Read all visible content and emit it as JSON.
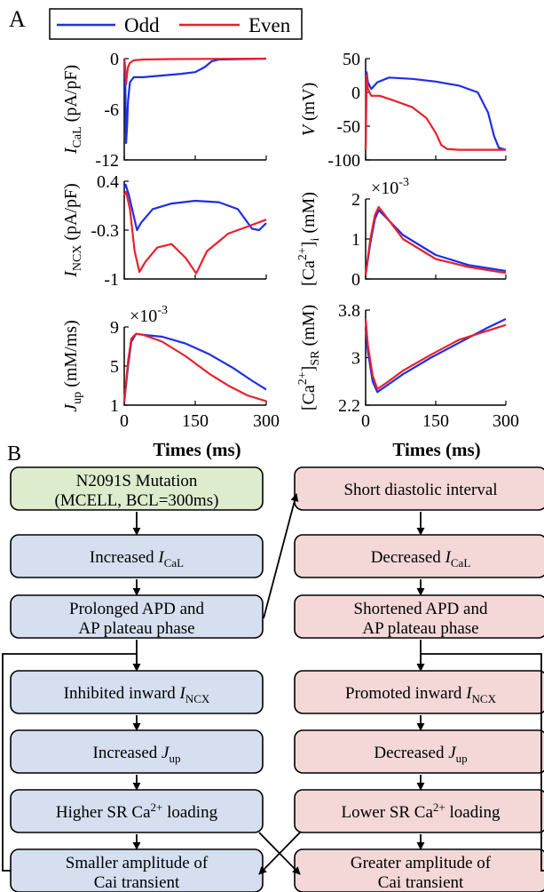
{
  "panel_a_label": "A",
  "panel_b_label": "B",
  "legend": {
    "odd": "Odd",
    "even": "Even",
    "odd_color": "#1f2ee6",
    "even_color": "#e8212b"
  },
  "axes": {
    "x_ticks": [
      "0",
      "150",
      "300"
    ],
    "x_label": "Times (ms)"
  },
  "chart_data": [
    {
      "type": "line",
      "id": "ical",
      "ylabel": "I_CaL (pA/pF)",
      "ylabel_main": "I",
      "ylabel_sub": "CaL",
      "ylabel_unit": "(pA/pF)",
      "xlim": [
        0,
        300
      ],
      "ylim": [
        -12,
        0
      ],
      "yticks": [
        -12,
        -6,
        0
      ],
      "yticklabels": [
        "-12",
        "-6",
        "0"
      ],
      "series": [
        {
          "name": "Odd",
          "color": "#1f2ee6",
          "points": [
            [
              0,
              0
            ],
            [
              2,
              -2
            ],
            [
              4,
              -10
            ],
            [
              6,
              -8
            ],
            [
              8,
              -5
            ],
            [
              12,
              -2.8
            ],
            [
              20,
              -2.2
            ],
            [
              40,
              -2.2
            ],
            [
              80,
              -2
            ],
            [
              120,
              -1.8
            ],
            [
              150,
              -1.6
            ],
            [
              170,
              -1
            ],
            [
              185,
              -0.3
            ],
            [
              200,
              -0.1
            ],
            [
              300,
              0
            ]
          ]
        },
        {
          "name": "Even",
          "color": "#e8212b",
          "points": [
            [
              0,
              0
            ],
            [
              2,
              -1
            ],
            [
              4,
              -3
            ],
            [
              6,
              -1.8
            ],
            [
              8,
              -1
            ],
            [
              12,
              -0.5
            ],
            [
              20,
              -0.2
            ],
            [
              40,
              -0.1
            ],
            [
              100,
              -0.05
            ],
            [
              300,
              0
            ]
          ]
        }
      ]
    },
    {
      "type": "line",
      "id": "v",
      "ylabel": "V (mV)",
      "ylabel_main": "V",
      "ylabel_unit": "(mV)",
      "xlim": [
        0,
        300
      ],
      "ylim": [
        -100,
        50
      ],
      "yticks": [
        -100,
        -50,
        0,
        50
      ],
      "yticklabels": [
        "-100",
        "-50",
        "0",
        "50"
      ],
      "series": [
        {
          "name": "Odd",
          "color": "#1f2ee6",
          "points": [
            [
              0,
              -85
            ],
            [
              2,
              30
            ],
            [
              5,
              15
            ],
            [
              12,
              5
            ],
            [
              25,
              15
            ],
            [
              50,
              22
            ],
            [
              100,
              20
            ],
            [
              150,
              16
            ],
            [
              200,
              10
            ],
            [
              240,
              0
            ],
            [
              262,
              -30
            ],
            [
              275,
              -65
            ],
            [
              285,
              -82
            ],
            [
              300,
              -85
            ]
          ]
        },
        {
          "name": "Even",
          "color": "#e8212b",
          "points": [
            [
              0,
              -85
            ],
            [
              2,
              25
            ],
            [
              5,
              5
            ],
            [
              12,
              -5
            ],
            [
              30,
              -5
            ],
            [
              60,
              -12
            ],
            [
              100,
              -22
            ],
            [
              130,
              -38
            ],
            [
              150,
              -60
            ],
            [
              162,
              -78
            ],
            [
              175,
              -84
            ],
            [
              200,
              -85
            ],
            [
              300,
              -85
            ]
          ]
        }
      ]
    },
    {
      "type": "line",
      "id": "incx",
      "ylabel": "I_NCX (pA/pF)",
      "ylabel_main": "I",
      "ylabel_sub": "NCX",
      "ylabel_unit": "(pA/pF)",
      "xlim": [
        0,
        300
      ],
      "ylim": [
        -1,
        0.4
      ],
      "yticks": [
        -1,
        -0.3,
        0.4
      ],
      "yticklabels": [
        "-1",
        "-0.3",
        "0.4"
      ],
      "series": [
        {
          "name": "Odd",
          "color": "#1f2ee6",
          "points": [
            [
              0,
              0.3
            ],
            [
              3,
              0.35
            ],
            [
              10,
              0.2
            ],
            [
              20,
              -0.1
            ],
            [
              27,
              -0.3
            ],
            [
              35,
              -0.2
            ],
            [
              60,
              0
            ],
            [
              100,
              0.08
            ],
            [
              150,
              0.12
            ],
            [
              200,
              0.1
            ],
            [
              240,
              0
            ],
            [
              270,
              -0.28
            ],
            [
              285,
              -0.3
            ],
            [
              300,
              -0.2
            ]
          ]
        },
        {
          "name": "Even",
          "color": "#e8212b",
          "points": [
            [
              0,
              0.2
            ],
            [
              4,
              0.25
            ],
            [
              12,
              0
            ],
            [
              22,
              -0.6
            ],
            [
              32,
              -0.9
            ],
            [
              45,
              -0.75
            ],
            [
              70,
              -0.55
            ],
            [
              100,
              -0.5
            ],
            [
              130,
              -0.7
            ],
            [
              152,
              -0.92
            ],
            [
              175,
              -0.6
            ],
            [
              220,
              -0.35
            ],
            [
              260,
              -0.25
            ],
            [
              300,
              -0.15
            ]
          ]
        }
      ]
    },
    {
      "type": "line",
      "id": "cai",
      "ylabel": "[Ca2+]i (mM)",
      "ylabel_main": "[Ca",
      "ylabel_sup": "2+",
      "ylabel_sub": "i",
      "ylabel_unit": "(mM)",
      "multiplier": "×10",
      "multiplier_exp": "-3",
      "xlim": [
        0,
        300
      ],
      "ylim": [
        0,
        2
      ],
      "yticks": [
        0,
        1,
        2
      ],
      "yticklabels": [
        "0",
        "1",
        "2"
      ],
      "series": [
        {
          "name": "Odd",
          "color": "#1f2ee6",
          "points": [
            [
              0,
              0.1
            ],
            [
              10,
              0.9
            ],
            [
              20,
              1.5
            ],
            [
              28,
              1.72
            ],
            [
              40,
              1.58
            ],
            [
              80,
              1.1
            ],
            [
              150,
              0.6
            ],
            [
              220,
              0.35
            ],
            [
              300,
              0.2
            ]
          ]
        },
        {
          "name": "Even",
          "color": "#e8212b",
          "points": [
            [
              0,
              0.1
            ],
            [
              10,
              1.0
            ],
            [
              20,
              1.6
            ],
            [
              28,
              1.8
            ],
            [
              40,
              1.62
            ],
            [
              80,
              1.0
            ],
            [
              150,
              0.5
            ],
            [
              220,
              0.3
            ],
            [
              300,
              0.15
            ]
          ]
        }
      ]
    },
    {
      "type": "line",
      "id": "jup",
      "ylabel": "J_up (mM/ms)",
      "ylabel_main": "J",
      "ylabel_sub": "up",
      "ylabel_unit": "(mM/ms)",
      "multiplier": "×10",
      "multiplier_exp": "-3",
      "xlim": [
        0,
        300
      ],
      "ylim": [
        1,
        9
      ],
      "yticks": [
        1,
        5,
        9
      ],
      "yticklabels": [
        "1",
        "5",
        "9"
      ],
      "series": [
        {
          "name": "Odd",
          "color": "#1f2ee6",
          "points": [
            [
              0,
              1.3
            ],
            [
              8,
              5
            ],
            [
              15,
              7.5
            ],
            [
              25,
              8.3
            ],
            [
              40,
              8.2
            ],
            [
              80,
              8
            ],
            [
              130,
              7.3
            ],
            [
              180,
              6.2
            ],
            [
              230,
              4.8
            ],
            [
              270,
              3.5
            ],
            [
              300,
              2.6
            ]
          ]
        },
        {
          "name": "Even",
          "color": "#e8212b",
          "points": [
            [
              0,
              1.3
            ],
            [
              8,
              5.5
            ],
            [
              15,
              7.8
            ],
            [
              25,
              8.3
            ],
            [
              40,
              8.2
            ],
            [
              80,
              7.5
            ],
            [
              130,
              6
            ],
            [
              180,
              4.2
            ],
            [
              220,
              3
            ],
            [
              260,
              2
            ],
            [
              300,
              1.4
            ]
          ]
        }
      ]
    },
    {
      "type": "line",
      "id": "casr",
      "ylabel": "[Ca2+]SR (mM)",
      "ylabel_main": "[Ca",
      "ylabel_sup": "2+",
      "ylabel_sub": "SR",
      "ylabel_unit": "(mM)",
      "xlim": [
        0,
        300
      ],
      "ylim": [
        2.2,
        3.8
      ],
      "yticks": [
        2.2,
        3,
        3.8
      ],
      "yticklabels": [
        "2.2",
        "3",
        "3.8"
      ],
      "series": [
        {
          "name": "Odd",
          "color": "#1f2ee6",
          "points": [
            [
              0,
              3.5
            ],
            [
              5,
              3.1
            ],
            [
              15,
              2.6
            ],
            [
              25,
              2.42
            ],
            [
              40,
              2.5
            ],
            [
              80,
              2.72
            ],
            [
              140,
              3.0
            ],
            [
              200,
              3.25
            ],
            [
              260,
              3.5
            ],
            [
              300,
              3.65
            ]
          ]
        },
        {
          "name": "Even",
          "color": "#e8212b",
          "points": [
            [
              0,
              3.65
            ],
            [
              5,
              3.2
            ],
            [
              15,
              2.7
            ],
            [
              25,
              2.47
            ],
            [
              40,
              2.55
            ],
            [
              80,
              2.78
            ],
            [
              140,
              3.05
            ],
            [
              200,
              3.3
            ],
            [
              260,
              3.45
            ],
            [
              300,
              3.55
            ]
          ]
        }
      ]
    }
  ],
  "flow": {
    "left": [
      {
        "kind": "plain",
        "text": "N2091S Mutation",
        "text2": "(MCELL, BCL=300ms)"
      },
      {
        "kind": "sub",
        "pre": "Increased ",
        "main": "I",
        "sub": "CaL"
      },
      {
        "kind": "plain",
        "text": "Prolonged APD and",
        "text2": "AP plateau phase"
      },
      {
        "kind": "sub",
        "pre": "Inhibited inward ",
        "main": "I",
        "sub": "NCX"
      },
      {
        "kind": "sub",
        "pre": "Increased ",
        "main": "J",
        "sub": "up"
      },
      {
        "kind": "sup",
        "pre": "Higher SR Ca",
        "sup": "2+",
        "post": " loading"
      },
      {
        "kind": "plain",
        "text": "Smaller amplitude of",
        "text2": "Cai transient"
      }
    ],
    "right": [
      {
        "kind": "plain",
        "text": "Short diastolic interval"
      },
      {
        "kind": "sub",
        "pre": "Decreased ",
        "main": "I",
        "sub": "CaL"
      },
      {
        "kind": "plain",
        "text": "Shortened APD and",
        "text2": "AP plateau phase"
      },
      {
        "kind": "sub",
        "pre": "Promoted inward ",
        "main": "I",
        "sub": "NCX"
      },
      {
        "kind": "sub",
        "pre": "Decreased ",
        "main": "J",
        "sub": "up"
      },
      {
        "kind": "sup",
        "pre": "Lower SR Ca",
        "sup": "2+",
        "post": " loading"
      },
      {
        "kind": "plain",
        "text": "Greater amplitude of",
        "text2": "Cai transient"
      }
    ],
    "colors": {
      "green": "#dceccd",
      "blue": "#d5dff0",
      "pink": "#f3d8d7"
    }
  }
}
